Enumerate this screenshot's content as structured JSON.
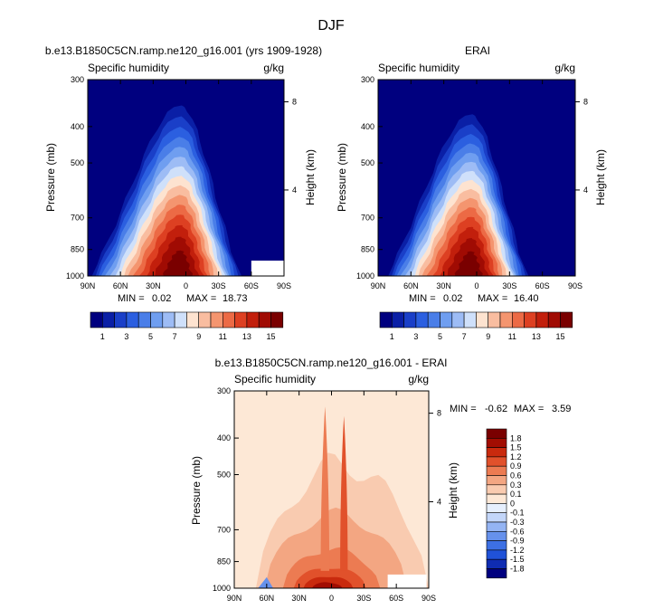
{
  "figure": {
    "title": "DJF",
    "panels": [
      {
        "title": "b.e13.B1850C5CN.ramp.ne120_g16.001 (yrs 1909-1928)",
        "left_label": "Specific humidity",
        "right_label": "g/kg",
        "stats": {
          "min_label": "MIN =",
          "min": "0.02",
          "max_label": "MAX =",
          "max": "18.73"
        }
      },
      {
        "title": "ERAI",
        "left_label": "Specific humidity",
        "right_label": "g/kg",
        "stats": {
          "min_label": "MIN =",
          "min": "0.02",
          "max_label": "MAX =",
          "max": "16.40"
        }
      },
      {
        "title": "b.e13.B1850C5CN.ramp.ne120_g16.001 - ERAI",
        "left_label": "Specific humidity",
        "right_label": "g/kg",
        "stats": {
          "min_label": "MIN =",
          "min": "-0.62",
          "max_label": "MAX =",
          "max": "3.59"
        }
      }
    ]
  },
  "colors": {
    "humidity_scale": [
      "#00007f",
      "#0a1fa6",
      "#1a3fc8",
      "#2b5fe0",
      "#4a7ee8",
      "#6f9ef0",
      "#9dbcf5",
      "#cfe0fa",
      "#fde3d0",
      "#f9bda0",
      "#f4956f",
      "#ec6a45",
      "#dd4022",
      "#c21f0c",
      "#a00b03",
      "#7a0000"
    ],
    "diff_scale": [
      "#00007f",
      "#0f2cb2",
      "#2052d8",
      "#3d70e4",
      "#6691ec",
      "#94b4f3",
      "#c3d6f9",
      "#e6effd",
      "#fde8d6",
      "#f9cbb0",
      "#f3a682",
      "#ec7b52",
      "#e1512b",
      "#c92a0e",
      "#a20d02",
      "#7a0000"
    ],
    "plot_background": "#00007f",
    "diff_background": "#fde8d6"
  },
  "chart_data": [
    {
      "type": "contour",
      "title": "b.e13.B1850C5CN.ramp.ne120_g16.001 (yrs 1909-1928)",
      "xlabel": "",
      "ylabel": "Pressure (mb)",
      "right_ylabel": "Height (km)",
      "x_ticks": [
        "90N",
        "60N",
        "30N",
        "0",
        "30S",
        "60S",
        "90S"
      ],
      "x_tick_values": [
        90,
        60,
        30,
        0,
        -30,
        -60,
        -90
      ],
      "y_ticks": [
        "300",
        "400",
        "500",
        "700",
        "850",
        "1000"
      ],
      "y_tick_values": [
        300,
        400,
        500,
        700,
        850,
        1000
      ],
      "right_ticks": [
        "8",
        "4"
      ],
      "right_tick_values": [
        8,
        4
      ],
      "xlim": [
        90,
        -90
      ],
      "ylim": [
        1000,
        300
      ],
      "y_scale": "log",
      "contour_peak_lat": 5,
      "surface_moisture_width_deg": [
        45,
        30
      ],
      "min": 0.02,
      "max": 18.73
    },
    {
      "type": "contour",
      "title": "ERAI",
      "xlabel": "",
      "ylabel": "Pressure (mb)",
      "right_ylabel": "Height (km)",
      "x_ticks": [
        "90N",
        "60N",
        "30N",
        "0",
        "30S",
        "60S",
        "90S"
      ],
      "x_tick_values": [
        90,
        60,
        30,
        0,
        -30,
        -60,
        -90
      ],
      "y_ticks": [
        "300",
        "400",
        "500",
        "700",
        "850",
        "1000"
      ],
      "y_tick_values": [
        300,
        400,
        500,
        700,
        850,
        1000
      ],
      "right_ticks": [
        "8",
        "4"
      ],
      "right_tick_values": [
        8,
        4
      ],
      "xlim": [
        90,
        -90
      ],
      "ylim": [
        1000,
        300
      ],
      "y_scale": "log",
      "contour_peak_lat": 5,
      "surface_moisture_width_deg": [
        42,
        28
      ],
      "min": 0.02,
      "max": 16.4
    },
    {
      "type": "contour",
      "title": "b.e13.B1850C5CN.ramp.ne120_g16.001 - ERAI",
      "xlabel": "",
      "ylabel": "Pressure (mb)",
      "right_ylabel": "Height (km)",
      "x_ticks": [
        "90N",
        "60N",
        "30N",
        "0",
        "30S",
        "60S",
        "90S"
      ],
      "x_tick_values": [
        90,
        60,
        30,
        0,
        -30,
        -60,
        -90
      ],
      "y_ticks": [
        "300",
        "400",
        "500",
        "700",
        "850",
        "1000"
      ],
      "y_tick_values": [
        300,
        400,
        500,
        700,
        850,
        1000
      ],
      "right_ticks": [
        "8",
        "4"
      ],
      "right_tick_values": [
        8,
        4
      ],
      "xlim": [
        90,
        -90
      ],
      "ylim": [
        1000,
        300
      ],
      "y_scale": "log",
      "min": -0.62,
      "max": 3.59
    }
  ],
  "colorbars": {
    "humidity": {
      "labels": [
        "1",
        "3",
        "5",
        "7",
        "9",
        "11",
        "13",
        "15"
      ]
    },
    "difference": {
      "labels": [
        "1.8",
        "1.5",
        "1.2",
        "0.9",
        "0.6",
        "0.3",
        "0.1",
        "0",
        "-0.1",
        "-0.3",
        "-0.6",
        "-0.9",
        "-1.2",
        "-1.5",
        "-1.8"
      ]
    }
  }
}
